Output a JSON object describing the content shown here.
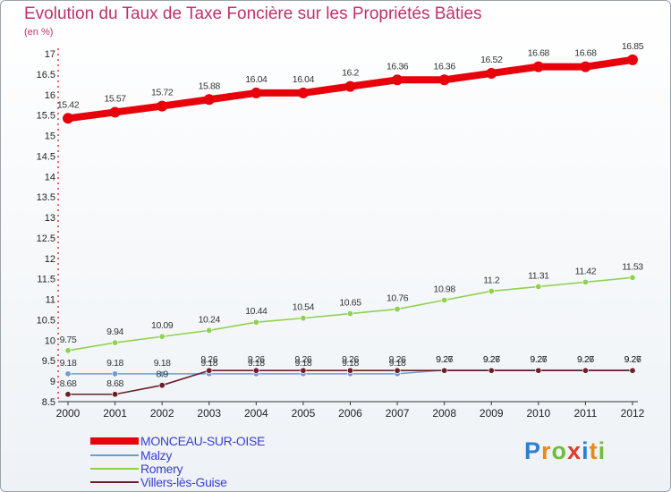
{
  "chart_data": {
    "type": "line",
    "title": "Evolution du Taux de Taxe Foncière sur les Propriétés Bâties",
    "subtitle": "(en %)",
    "xlabel": "",
    "ylabel": "",
    "x": [
      "2000",
      "2001",
      "2002",
      "2003",
      "2004",
      "2005",
      "2006",
      "2007",
      "2008",
      "2009",
      "2010",
      "2011",
      "2012"
    ],
    "ylim": [
      8.5,
      17
    ],
    "yticks": [
      "8.5",
      "9",
      "9.5",
      "10",
      "10.5",
      "11",
      "11.5",
      "12",
      "12.5",
      "13",
      "13.5",
      "14",
      "14.5",
      "15",
      "15.5",
      "16",
      "16.5",
      "17"
    ],
    "grid": false,
    "series": [
      {
        "name": "MONCEAU-SUR-OISE",
        "color": "#e8000b",
        "values": [
          15.42,
          15.57,
          15.72,
          15.88,
          16.04,
          16.04,
          16.2,
          16.36,
          16.36,
          16.52,
          16.68,
          16.68,
          16.85
        ],
        "labels": [
          "15.42",
          "15.57",
          "15.72",
          "15.88",
          "16.04",
          "16.04",
          "16.2",
          "16.36",
          "16.36",
          "16.52",
          "16.68",
          "16.68",
          "16.85"
        ]
      },
      {
        "name": "Malzy",
        "color": "#6a9fcd",
        "values": [
          9.18,
          9.18,
          9.18,
          9.18,
          9.18,
          9.18,
          9.18,
          9.18,
          9.27,
          9.27,
          9.27,
          9.27,
          9.27
        ],
        "labels": [
          "9.18",
          "9.18",
          "9.18",
          "9.18",
          "9.18",
          "9.18",
          "9.18",
          "9.18",
          "9.27",
          "9.27",
          "9.27",
          "9.27",
          "9.27"
        ]
      },
      {
        "name": "Romery",
        "color": "#8fd14f",
        "values": [
          9.75,
          9.94,
          10.09,
          10.24,
          10.44,
          10.54,
          10.65,
          10.76,
          10.98,
          11.2,
          11.31,
          11.42,
          11.53
        ],
        "labels": [
          "9.75",
          "9.94",
          "10.09",
          "10.24",
          "10.44",
          "10.54",
          "10.65",
          "10.76",
          "10.98",
          "11.2",
          "11.31",
          "11.42",
          "11.53"
        ]
      },
      {
        "name": "Villers-lès-Guise",
        "color": "#6b1f2a",
        "values": [
          8.68,
          8.68,
          8.9,
          9.26,
          9.26,
          9.26,
          9.26,
          9.26,
          9.26,
          9.26,
          9.26,
          9.26,
          9.26
        ],
        "labels": [
          "8.68",
          "8.68",
          "8.9",
          "9.26",
          "9.26",
          "9.26",
          "9.26",
          "9.26",
          "9.26",
          "9.26",
          "9.26",
          "9.26",
          "9.26"
        ]
      }
    ]
  },
  "brand": {
    "name": "Proxiti",
    "letters": [
      {
        "char": "P",
        "color": "#2d7fd3"
      },
      {
        "char": "r",
        "color": "#e88a1a"
      },
      {
        "char": "o",
        "color": "#6cbf3a"
      },
      {
        "char": "x",
        "color": "#e03a2a"
      },
      {
        "char": "i",
        "color": "#2d7fd3"
      },
      {
        "char": "t",
        "color": "#e88a1a"
      },
      {
        "char": "i",
        "color": "#6cbf3a"
      }
    ]
  }
}
